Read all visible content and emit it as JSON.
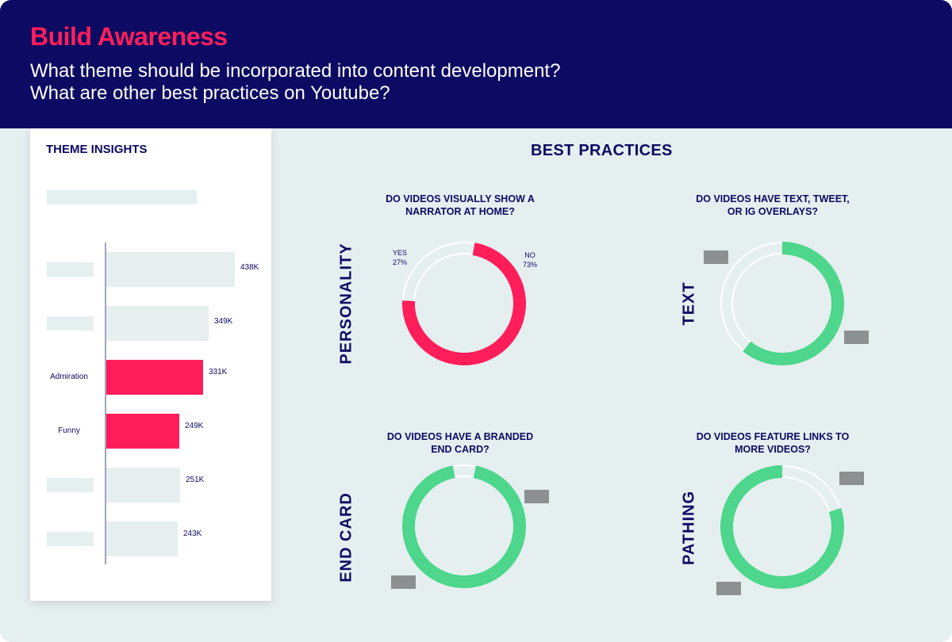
{
  "header": {
    "title": "Build Awareness",
    "subtitle_line1": "What theme should be incorporated into content development?",
    "subtitle_line2": "What are other best practices on Youtube?"
  },
  "theme_panel": {
    "title": "THEME INSIGHTS"
  },
  "best_practices": {
    "title": "BEST PRACTICES",
    "personality": {
      "side_label": "PERSONALITY",
      "question_line1": "DO VIDEOS VISUALLY SHOW A",
      "question_line2": "NARRATOR AT HOME?",
      "yes_label": "YES",
      "yes_value": "27%",
      "no_label": "NO",
      "no_value": "73%"
    },
    "text": {
      "side_label": "TEXT",
      "question_line1": "DO VIDEOS HAVE TEXT, TWEET,",
      "question_line2": "OR IG OVERLAYS?"
    },
    "end_card": {
      "side_label": "END CARD",
      "question_line1": "DO VIDEOS HAVE A BRANDED",
      "question_line2": "END CARD?"
    },
    "pathing": {
      "side_label": "PATHING",
      "question_line1": "DO VIDEOS FEATURE LINKS TO",
      "question_line2": "MORE VIDEOS?"
    }
  },
  "colors": {
    "navy": "#0c0a62",
    "pink": "#ff1e5a",
    "green": "#4dd68c",
    "track": "#e6eeef",
    "placeholder": "#8c9090"
  },
  "chart_data": [
    {
      "type": "bar",
      "title": "THEME INSIGHTS",
      "orientation": "horizontal",
      "categories": [
        "",
        "",
        "Admiration",
        "Funny",
        "",
        ""
      ],
      "values": [
        438,
        349,
        331,
        249,
        251,
        243
      ],
      "value_labels": [
        "438K",
        "349K",
        "331K",
        "249K",
        "251K",
        "243K"
      ],
      "highlighted": [
        false,
        false,
        true,
        true,
        false,
        false
      ]
    },
    {
      "type": "pie",
      "title": "DO VIDEOS VISUALLY SHOW A NARRATOR AT HOME?",
      "categories": [
        "YES",
        "NO"
      ],
      "values": [
        27,
        73
      ]
    },
    {
      "type": "pie",
      "title": "DO VIDEOS HAVE TEXT, TWEET, OR IG OVERLAYS?",
      "values": [
        61,
        39
      ]
    },
    {
      "type": "pie",
      "title": "DO VIDEOS HAVE A BRANDED END CARD?",
      "values": [
        94,
        6
      ]
    },
    {
      "type": "pie",
      "title": "DO VIDEOS FEATURE LINKS TO MORE VIDEOS?",
      "values": [
        80,
        20
      ]
    }
  ]
}
